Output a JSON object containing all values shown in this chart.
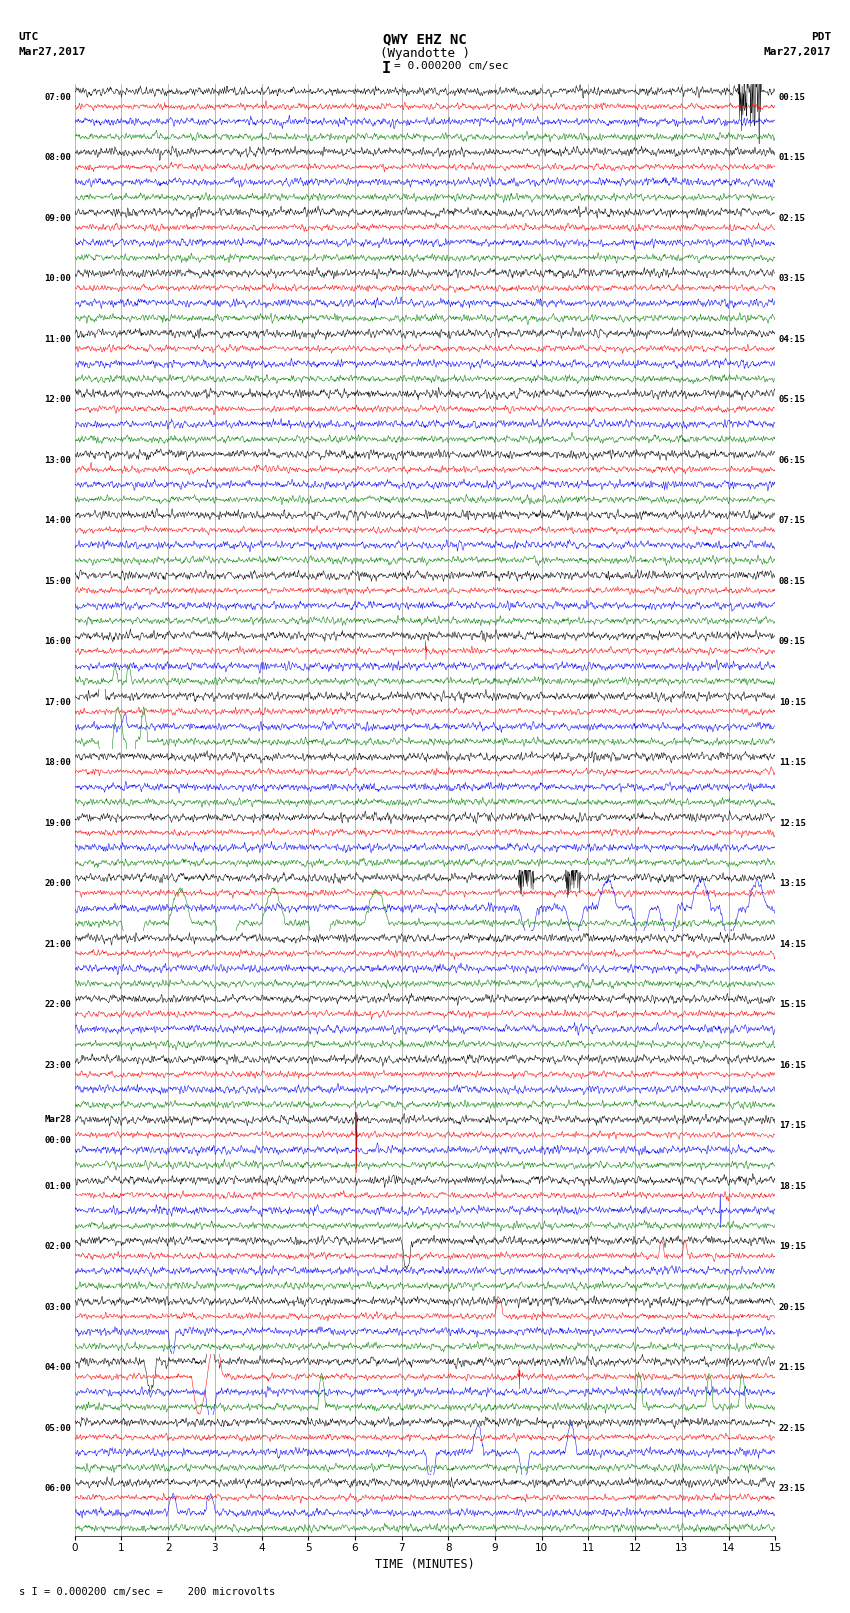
{
  "title_line1": "QWY EHZ NC",
  "title_line2": "(Wyandotte )",
  "scale_text": "= 0.000200 cm/sec",
  "scale_marker": "I",
  "utc_label": "UTC",
  "utc_date": "Mar27,2017",
  "pdt_label": "PDT",
  "pdt_date": "Mar27,2017",
  "bottom_label": "TIME (MINUTES)",
  "bottom_note": "s I = 0.000200 cm/sec =    200 microvolts",
  "figsize": [
    8.5,
    16.13
  ],
  "dpi": 100,
  "bg_color": "#ffffff",
  "trace_colors": [
    "black",
    "red",
    "blue",
    "green"
  ],
  "grid_color": "#888888",
  "num_rows": 24,
  "traces_per_row": 4,
  "minutes_per_row": 15,
  "x_ticks": [
    0,
    1,
    2,
    3,
    4,
    5,
    6,
    7,
    8,
    9,
    10,
    11,
    12,
    13,
    14,
    15
  ],
  "noise_amplitude": 0.06,
  "noise_seed": 12345,
  "utc_hours": [
    "07:00",
    "08:00",
    "09:00",
    "10:00",
    "11:00",
    "12:00",
    "13:00",
    "14:00",
    "15:00",
    "16:00",
    "17:00",
    "18:00",
    "19:00",
    "20:00",
    "21:00",
    "22:00",
    "23:00",
    "Mar28\n00:00",
    "01:00",
    "02:00",
    "03:00",
    "04:00",
    "05:00",
    "06:00"
  ],
  "pdt_hours": [
    "00:15",
    "01:15",
    "02:15",
    "03:15",
    "04:15",
    "05:15",
    "06:15",
    "07:15",
    "08:15",
    "09:15",
    "10:15",
    "11:15",
    "12:15",
    "13:15",
    "14:15",
    "15:15",
    "16:15",
    "17:15",
    "18:15",
    "19:15",
    "20:15",
    "21:15",
    "22:15",
    "23:15"
  ]
}
